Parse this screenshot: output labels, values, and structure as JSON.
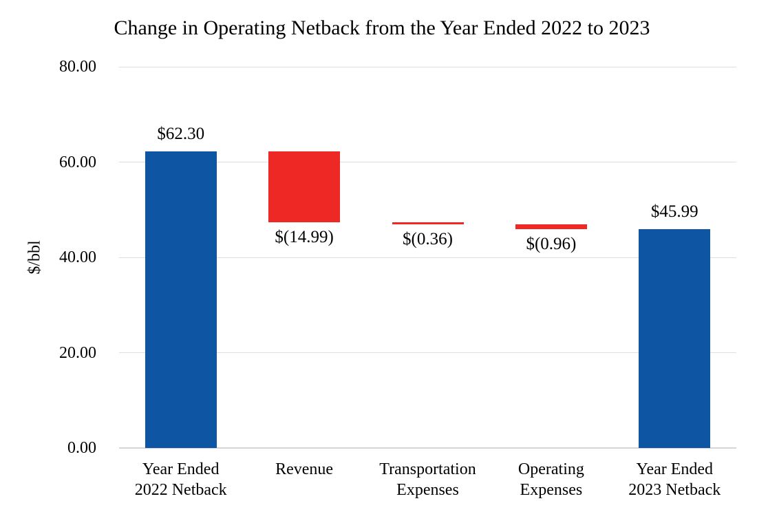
{
  "title": "Change in Operating Netback from the Year Ended 2022 to 2023",
  "chart_data": {
    "type": "bar",
    "subtype": "waterfall",
    "title": "Change in Operating Netback from the Year Ended 2022 to 2023",
    "ylabel": "$/bbl",
    "xlabel": "",
    "ylim": [
      0,
      80
    ],
    "yticks": [
      0,
      20,
      40,
      60,
      80
    ],
    "ytick_labels": [
      "0.00",
      "20.00",
      "40.00",
      "60.00",
      "80.00"
    ],
    "grid": "horizontal",
    "legend": "none",
    "categories": [
      "Year Ended 2022 Netback",
      "Revenue",
      "Transportation Expenses",
      "Operating Expenses",
      "Year Ended 2023 Netback"
    ],
    "bars": [
      {
        "category_lines": [
          "Year Ended",
          "2022 Netback"
        ],
        "label": "$62.30",
        "value": 62.3,
        "start": 0,
        "end": 62.3,
        "role": "total",
        "label_position": "above"
      },
      {
        "category_lines": [
          "Revenue"
        ],
        "label": "$(14.99)",
        "value": -14.99,
        "start": 62.3,
        "end": 47.31,
        "role": "decrease",
        "label_position": "below"
      },
      {
        "category_lines": [
          "Transportation",
          "Expenses"
        ],
        "label": "$(0.36)",
        "value": -0.36,
        "start": 47.31,
        "end": 46.95,
        "role": "decrease",
        "label_position": "below"
      },
      {
        "category_lines": [
          "Operating",
          "Expenses"
        ],
        "label": "$(0.96)",
        "value": -0.96,
        "start": 46.95,
        "end": 45.99,
        "role": "decrease",
        "label_position": "below"
      },
      {
        "category_lines": [
          "Year Ended",
          "2023 Netback"
        ],
        "label": "$45.99",
        "value": 45.99,
        "start": 0,
        "end": 45.99,
        "role": "total",
        "label_position": "above"
      }
    ],
    "colors": {
      "total": "#0E56A3",
      "decrease": "#EE2824",
      "gridline": "#DEDEDE",
      "axis_line": "#D6D6D6",
      "text": "#000000",
      "background": "#FFFFFF"
    }
  }
}
